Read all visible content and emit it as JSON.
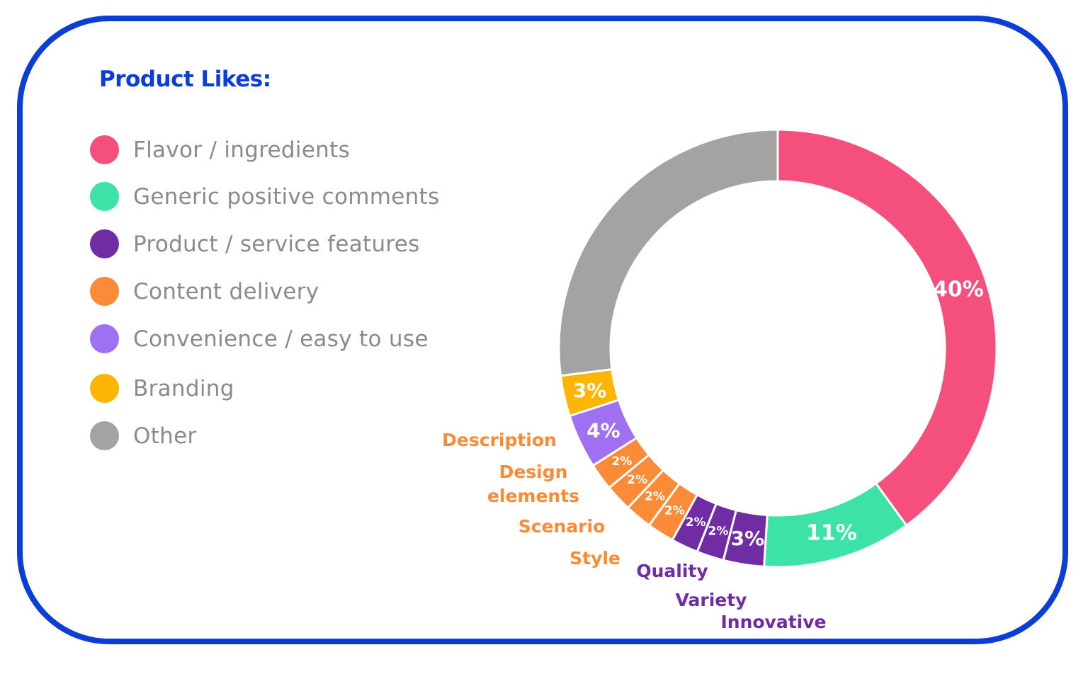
{
  "chart_data": {
    "type": "pie",
    "title": "Product Likes:",
    "legend": {
      "placement": "left",
      "entries": [
        {
          "name": "Flavor / ingredients",
          "color": "#f54f7d"
        },
        {
          "name": "Generic positive comments",
          "color": "#3de3a6"
        },
        {
          "name": "Product / service features",
          "color": "#6f2ca3"
        },
        {
          "name": "Content delivery",
          "color": "#fb8b37"
        },
        {
          "name": "Convenience / easy to use",
          "color": "#9f70f2"
        },
        {
          "name": "Branding",
          "color": "#ffb505"
        },
        {
          "name": "Other",
          "color": "#a3a3a3"
        }
      ]
    },
    "slices": [
      {
        "category": "Flavor / ingredients",
        "value": 40,
        "label": "40%",
        "color": "#f54f7d"
      },
      {
        "category": "Generic positive comments",
        "value": 11,
        "label": "11%",
        "color": "#3de3a6"
      },
      {
        "category": "Product / service features",
        "sub": "Innovative",
        "value": 3,
        "label": "3%",
        "color": "#6f2ca3"
      },
      {
        "category": "Product / service features",
        "sub": "Variety",
        "value": 2,
        "label": "2%",
        "color": "#6f2ca3"
      },
      {
        "category": "Product / service features",
        "sub": "Quality",
        "value": 2,
        "label": "2%",
        "color": "#6f2ca3"
      },
      {
        "category": "Content delivery",
        "sub": "Style",
        "value": 2,
        "label": "2%",
        "color": "#fb8b37"
      },
      {
        "category": "Content delivery",
        "sub": "Scenario",
        "value": 2,
        "label": "2%",
        "color": "#fb8b37"
      },
      {
        "category": "Content delivery",
        "sub": "Design elements",
        "value": 2,
        "label": "2%",
        "color": "#fb8b37"
      },
      {
        "category": "Content delivery",
        "sub": "Description",
        "value": 2,
        "label": "2%",
        "color": "#fb8b37"
      },
      {
        "category": "Convenience / easy to use",
        "value": 4,
        "label": "4%",
        "color": "#9f70f2"
      },
      {
        "category": "Branding",
        "value": 3,
        "label": "3%",
        "color": "#ffb505"
      },
      {
        "category": "Other",
        "value": 27,
        "label": "",
        "color": "#a3a3a3"
      }
    ],
    "subcategory_labels": [
      {
        "text": [
          "Description"
        ],
        "color": "#fb8b37"
      },
      {
        "text": [
          "Design",
          "elements"
        ],
        "color": "#fb8b37"
      },
      {
        "text": [
          "Scenario"
        ],
        "color": "#fb8b37"
      },
      {
        "text": [
          "Style"
        ],
        "color": "#fb8b37"
      },
      {
        "text": [
          "Quality"
        ],
        "color": "#6f2ca3"
      },
      {
        "text": [
          "Variety"
        ],
        "color": "#6f2ca3"
      },
      {
        "text": [
          "Innovative"
        ],
        "color": "#6f2ca3"
      }
    ]
  },
  "theme": {
    "accent": "#0b3ed6"
  }
}
